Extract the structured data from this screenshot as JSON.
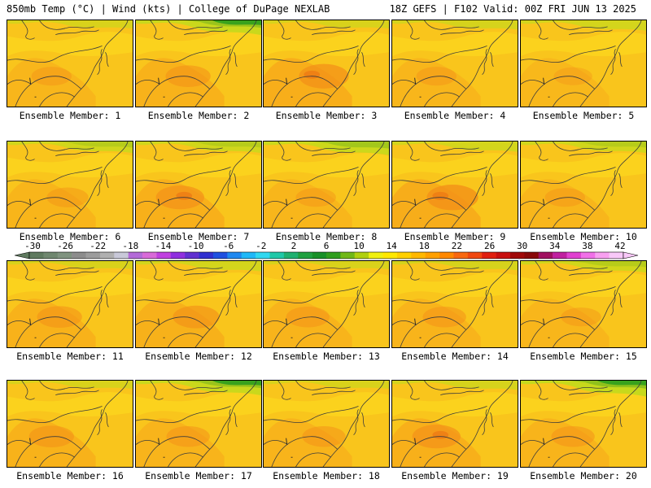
{
  "header": {
    "left": "850mb Temp (°C) | Wind (kts) | College of DuPage NEXLAB",
    "right": "18Z GEFS | F102 Valid: 00Z FRI JUN 13 2025"
  },
  "members": [
    {
      "label": "Ensemble Member: 1",
      "north_green": 0.3,
      "hot": 0.3
    },
    {
      "label": "Ensemble Member: 2",
      "north_green": 0.9,
      "hot": 0.6
    },
    {
      "label": "Ensemble Member: 3",
      "north_green": 0.3,
      "hot": 0.9
    },
    {
      "label": "Ensemble Member: 4",
      "north_green": 0.4,
      "hot": 0.3
    },
    {
      "label": "Ensemble Member: 5",
      "north_green": 0.5,
      "hot": 0.2
    },
    {
      "label": "Ensemble Member: 6",
      "north_green": 0.6,
      "hot": 0.4
    },
    {
      "label": "Ensemble Member: 7",
      "north_green": 0.6,
      "hot": 0.8
    },
    {
      "label": "Ensemble Member: 8",
      "north_green": 0.8,
      "hot": 0.3
    },
    {
      "label": "Ensemble Member: 9",
      "north_green": 0.5,
      "hot": 1.0
    },
    {
      "label": "Ensemble Member: 10",
      "north_green": 0.6,
      "hot": 0.3
    },
    {
      "label": "Ensemble Member: 11",
      "north_green": 0.3,
      "hot": 0.6
    },
    {
      "label": "Ensemble Member: 12",
      "north_green": 0.5,
      "hot": 0.7
    },
    {
      "label": "Ensemble Member: 13",
      "north_green": 0.3,
      "hot": 0.5
    },
    {
      "label": "Ensemble Member: 14",
      "north_green": 0.4,
      "hot": 0.5
    },
    {
      "label": "Ensemble Member: 15",
      "north_green": 0.6,
      "hot": 0.3
    },
    {
      "label": "Ensemble Member: 16",
      "north_green": 0.3,
      "hot": 0.6
    },
    {
      "label": "Ensemble Member: 17",
      "north_green": 0.9,
      "hot": 0.5
    },
    {
      "label": "Ensemble Member: 18",
      "north_green": 0.3,
      "hot": 0.5
    },
    {
      "label": "Ensemble Member: 19",
      "north_green": 0.4,
      "hot": 0.8
    },
    {
      "label": "Ensemble Member: 20",
      "north_green": 1.0,
      "hot": 0.5
    }
  ],
  "colorbar": {
    "ticks": [
      "-30",
      "-26",
      "-22",
      "-18",
      "-14",
      "-10",
      "-6",
      "-2",
      "2",
      "6",
      "10",
      "14",
      "18",
      "22",
      "26",
      "30",
      "34",
      "38",
      "42"
    ],
    "colors": [
      "#5f7a5f",
      "#6f876f",
      "#7f937f",
      "#8c8c8c",
      "#9c9c9c",
      "#b0b0b0",
      "#c8c8d8",
      "#b36ad8",
      "#d86ad8",
      "#c040e0",
      "#8f2fdf",
      "#6030d0",
      "#3030d0",
      "#1f50e0",
      "#1f88f0",
      "#1fb8f8",
      "#30d8f0",
      "#20c8a8",
      "#20b070",
      "#20a040",
      "#189028",
      "#2f9e1e",
      "#70b818",
      "#b0d010",
      "#f0f010",
      "#ffe800",
      "#ffd000",
      "#ffb800",
      "#ffa000",
      "#ff8800",
      "#f86810",
      "#f04810",
      "#e02010",
      "#c81010",
      "#a00808",
      "#880808",
      "#a01060",
      "#c020a0",
      "#e040d0",
      "#f070e8",
      "#f8a0f0",
      "#f8c8f8"
    ]
  }
}
